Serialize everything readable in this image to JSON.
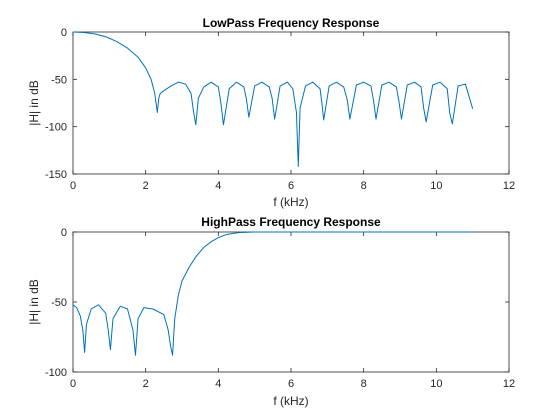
{
  "chart_data": [
    {
      "type": "line",
      "title": "LowPass Frequency Response",
      "xlabel": "f (kHz)",
      "ylabel": "|H| in dB",
      "xlim": [
        0,
        12
      ],
      "ylim": [
        -150,
        0
      ],
      "xticks": [
        "0",
        "2",
        "4",
        "6",
        "8",
        "10",
        "12"
      ],
      "yticks": [
        "0",
        "-50",
        "-100",
        "-150"
      ],
      "grid": false,
      "color": "#0072BD",
      "series": [
        {
          "x": [
            0,
            0.3,
            0.6,
            0.9,
            1.2,
            1.5,
            1.8,
            2.0,
            2.15,
            2.25,
            2.32,
            2.36,
            2.4,
            2.5,
            2.7,
            2.9,
            3.1,
            3.25,
            3.32,
            3.38,
            3.45,
            3.6,
            3.8,
            4.0,
            4.07,
            4.14,
            4.3,
            4.5,
            4.7,
            4.77,
            4.84,
            5.0,
            5.2,
            5.4,
            5.48,
            5.55,
            5.7,
            5.9,
            6.05,
            6.15,
            6.2,
            6.25,
            6.4,
            6.6,
            6.8,
            6.85,
            6.9,
            7.05,
            7.25,
            7.45,
            7.55,
            7.62,
            7.8,
            8.0,
            8.2,
            8.27,
            8.34,
            8.5,
            8.7,
            8.9,
            8.97,
            9.04,
            9.2,
            9.4,
            9.58,
            9.65,
            9.72,
            9.9,
            10.1,
            10.3,
            10.37,
            10.44,
            10.6,
            10.8,
            11.0
          ],
          "y": [
            0,
            -0.5,
            -2,
            -5,
            -10,
            -17,
            -27,
            -38,
            -50,
            -65,
            -85,
            -70,
            -65,
            -62,
            -57,
            -53,
            -55,
            -65,
            -85,
            -98,
            -70,
            -58,
            -53,
            -58,
            -75,
            -98,
            -60,
            -53,
            -58,
            -70,
            -90,
            -57,
            -53,
            -58,
            -70,
            -92,
            -57,
            -53,
            -60,
            -85,
            -142,
            -80,
            -57,
            -53,
            -60,
            -75,
            -93,
            -57,
            -53,
            -58,
            -72,
            -92,
            -56,
            -53,
            -57,
            -72,
            -92,
            -56,
            -53,
            -58,
            -73,
            -92,
            -56,
            -53,
            -58,
            -80,
            -95,
            -56,
            -53,
            -60,
            -86,
            -97,
            -57,
            -55,
            -81
          ]
        }
      ]
    },
    {
      "type": "line",
      "title": "HighPass Frequency Response",
      "xlabel": "f (kHz)",
      "ylabel": "|H| in dB",
      "xlim": [
        0,
        12
      ],
      "ylim": [
        -100,
        0
      ],
      "xticks": [
        "0",
        "2",
        "4",
        "6",
        "8",
        "10",
        "12"
      ],
      "yticks": [
        "0",
        "-50",
        "-100"
      ],
      "grid": false,
      "color": "#0072BD",
      "series": [
        {
          "x": [
            0,
            0.1,
            0.2,
            0.27,
            0.32,
            0.37,
            0.5,
            0.7,
            0.9,
            0.97,
            1.03,
            1.1,
            1.3,
            1.5,
            1.65,
            1.72,
            1.79,
            1.95,
            2.2,
            2.5,
            2.62,
            2.69,
            2.74,
            2.8,
            2.9,
            3.0,
            3.2,
            3.4,
            3.6,
            3.8,
            4.0,
            4.2,
            4.4,
            4.6,
            4.8,
            5.0,
            5.5,
            6.0,
            7.0,
            8.0,
            9.0,
            10.0,
            11.0
          ],
          "y": [
            -52,
            -54,
            -60,
            -70,
            -86,
            -66,
            -55,
            -52,
            -58,
            -70,
            -84,
            -62,
            -53,
            -55,
            -70,
            -88,
            -62,
            -54,
            -55,
            -59,
            -70,
            -82,
            -88,
            -62,
            -45,
            -35,
            -25,
            -17,
            -11,
            -7,
            -4,
            -2,
            -1,
            -0.4,
            -0.2,
            0,
            0,
            0,
            0,
            0,
            0,
            0,
            0
          ]
        }
      ]
    }
  ]
}
